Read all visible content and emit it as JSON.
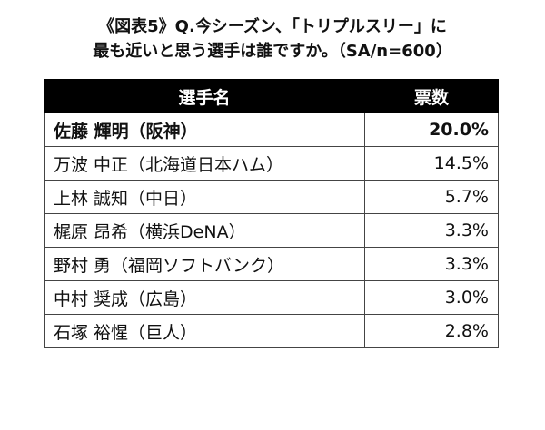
{
  "header": {
    "title_lines": [
      "《図表5》Q.今シーズン、「トリプルスリー」に",
      "最も近いと思う選手は誰ですか。（SA/n=600）"
    ]
  },
  "table": {
    "columns": [
      "選手名",
      "票数"
    ],
    "rows": [
      [
        "佐藤 輝明（阪神）",
        "20.0%"
      ],
      [
        "万波 中正（北海道日本ハム）",
        "14.5%"
      ],
      [
        "上林 誠知（中日）",
        "5.7%"
      ],
      [
        "梶原 昂希（横浜DeNA）",
        "3.3%"
      ],
      [
        "野村 勇（福岡ソフトバンク）",
        "3.3%"
      ],
      [
        "中村 奨成（広島）",
        "3.0%"
      ],
      [
        "石塚 裕惺（巨人）",
        "2.8%"
      ]
    ]
  }
}
